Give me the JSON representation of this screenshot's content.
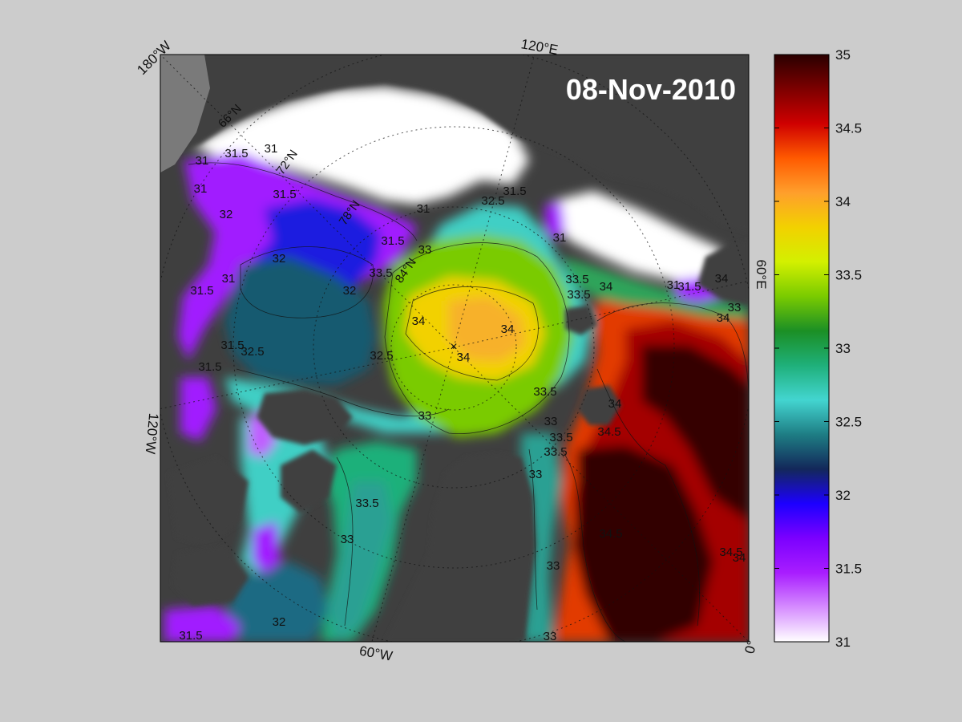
{
  "title": "08-Nov-2010",
  "colorbar": {
    "ticks": [
      "35",
      "34.5",
      "34",
      "33.5",
      "33",
      "32.5",
      "32",
      "31.5",
      "31"
    ],
    "range": [
      31,
      35
    ],
    "stops": [
      "#ffffff",
      "#d58cff",
      "#a81dff",
      "#7b00ff",
      "#1c00ff",
      "#13285a",
      "#1e7d84",
      "#43d5d0",
      "#1fb07a",
      "#1b8f25",
      "#7acb00",
      "#d3f000",
      "#f2d100",
      "#ff9f2c",
      "#ff5a00",
      "#cf0000",
      "#7d0000",
      "#2a0000"
    ]
  },
  "lon_labels": [
    {
      "text": "180°W"
    },
    {
      "text": "120°E"
    },
    {
      "text": "60°E"
    },
    {
      "text": "0°"
    },
    {
      "text": "60°W"
    },
    {
      "text": "120°W"
    }
  ],
  "lat_labels": [
    {
      "text": "66°N"
    },
    {
      "text": "72°N"
    },
    {
      "text": "78°N"
    },
    {
      "text": "84°N"
    }
  ],
  "contour_labels": [
    "31",
    "31.5",
    "31",
    "31",
    "31.5",
    "32",
    "31",
    "31.5",
    "32.5",
    "31.5",
    "31",
    "33",
    "33.5",
    "32",
    "32",
    "31",
    "31.5",
    "32.5",
    "32.5",
    "31.5",
    "31.5",
    "34",
    "34",
    "34",
    "34",
    "33.5",
    "33.5",
    "34",
    "33.5",
    "34",
    "34",
    "33",
    "33.5",
    "33",
    "33",
    "33.5",
    "34.5",
    "33.5",
    "33",
    "32",
    "31.5",
    "34.5",
    "34.5",
    "33",
    "33",
    "31",
    "31.5",
    "33",
    "34"
  ],
  "colors": {
    "background": "#cccccc",
    "land": "#3f3f3f",
    "ice": "#ffffff",
    "frame": "#000000"
  }
}
